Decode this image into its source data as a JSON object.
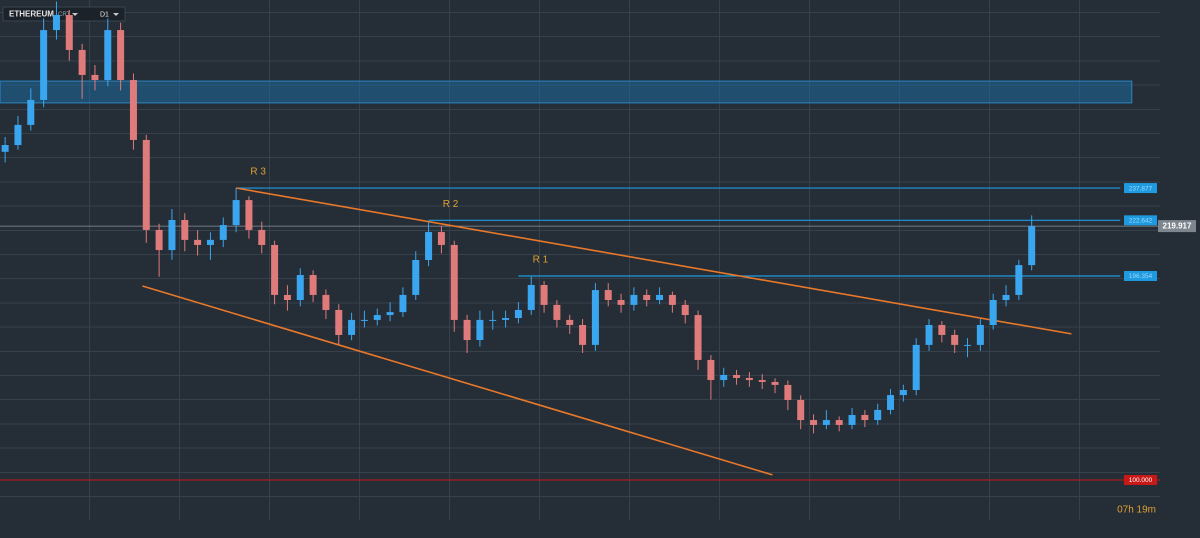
{
  "chart_data": {
    "type": "candlestick",
    "instrument": "ETHEREUM",
    "account": "CRT",
    "timeframe": "D1",
    "countdown": "07h 19m",
    "up_color": "#3aa6f0",
    "down_color": "#e07b7b",
    "xlim": [
      -0.4,
      90
    ],
    "ylim": [
      72.6,
      326.7
    ],
    "ohlc": [
      [
        255,
        262,
        250,
        258.2
      ],
      [
        258.2,
        272,
        256,
        267.7
      ],
      [
        267.7,
        285,
        265,
        279.5
      ],
      [
        279.5,
        318,
        276,
        312.5
      ],
      [
        312.5,
        326,
        308,
        319.6
      ],
      [
        319.6,
        322,
        298,
        303.1
      ],
      [
        303.1,
        306,
        280,
        291.3
      ],
      [
        291.3,
        296,
        284,
        288.9
      ],
      [
        288.9,
        318,
        286,
        312.5
      ],
      [
        312.5,
        316,
        284,
        288.9
      ],
      [
        288.9,
        292,
        256,
        260.6
      ],
      [
        260.6,
        263,
        212,
        218.1
      ],
      [
        218.1,
        221,
        196,
        208.6
      ],
      [
        208.6,
        228,
        204,
        222.8
      ],
      [
        222.8,
        226,
        208,
        213.4
      ],
      [
        213.4,
        218,
        206,
        211.0
      ],
      [
        211.0,
        217,
        204,
        213.4
      ],
      [
        213.4,
        224,
        210,
        220.4
      ],
      [
        220.4,
        237.9,
        217,
        232.2
      ],
      [
        232.2,
        234,
        214,
        218.1
      ],
      [
        218.1,
        222,
        207,
        211.0
      ],
      [
        211.0,
        213,
        183,
        187.4
      ],
      [
        187.4,
        192,
        180,
        185.0
      ],
      [
        185.0,
        200,
        182,
        196.8
      ],
      [
        196.8,
        199,
        184,
        187.4
      ],
      [
        187.4,
        190,
        176,
        180.3
      ],
      [
        180.3,
        183,
        164,
        168.5
      ],
      [
        168.5,
        179,
        166,
        175.6
      ],
      [
        175.6,
        180,
        172,
        175.6
      ],
      [
        175.6,
        181,
        173,
        177.9
      ],
      [
        177.9,
        184,
        175,
        179.3
      ],
      [
        179.3,
        191,
        177,
        187.4
      ],
      [
        187.4,
        208,
        185,
        203.9
      ],
      [
        203.9,
        222,
        201,
        217.1
      ],
      [
        217.1,
        220,
        207,
        211.0
      ],
      [
        211.0,
        213,
        170,
        175.6
      ],
      [
        175.6,
        178,
        160,
        166.1
      ],
      [
        166.1,
        180,
        163,
        175.6
      ],
      [
        175.6,
        180,
        171,
        175.6
      ],
      [
        175.6,
        180,
        172,
        176.5
      ],
      [
        176.5,
        184,
        174,
        180.3
      ],
      [
        180.3,
        196,
        178,
        192.1
      ],
      [
        192.1,
        194,
        179,
        182.7
      ],
      [
        182.7,
        185,
        172,
        175.6
      ],
      [
        175.6,
        178,
        169,
        173.2
      ],
      [
        173.2,
        176,
        160,
        163.8
      ],
      [
        163.8,
        193,
        161,
        189.7
      ],
      [
        189.7,
        193,
        182,
        185.0
      ],
      [
        185.0,
        188,
        179,
        182.7
      ],
      [
        182.7,
        191,
        180,
        187.4
      ],
      [
        187.4,
        190,
        182,
        185.0
      ],
      [
        185.0,
        191,
        183,
        187.4
      ],
      [
        187.4,
        189,
        179,
        182.7
      ],
      [
        182.7,
        185,
        174,
        177.9
      ],
      [
        177.9,
        180,
        152,
        156.7
      ],
      [
        156.7,
        159,
        138,
        147.2
      ],
      [
        147.2,
        153,
        144,
        149.6
      ],
      [
        149.6,
        152,
        145,
        148.2
      ],
      [
        148.2,
        151,
        144,
        147.2
      ],
      [
        147.2,
        150,
        143,
        146.3
      ],
      [
        146.3,
        148,
        141,
        144.9
      ],
      [
        144.9,
        147,
        133,
        137.8
      ],
      [
        137.8,
        140,
        124,
        128.3
      ],
      [
        128.3,
        131,
        122,
        126.0
      ],
      [
        126.0,
        133,
        124,
        128.3
      ],
      [
        128.3,
        130,
        123,
        126.0
      ],
      [
        126.0,
        134,
        124,
        130.7
      ],
      [
        130.7,
        133,
        125,
        128.3
      ],
      [
        128.3,
        136,
        126,
        133.1
      ],
      [
        133.1,
        143,
        131,
        140.1
      ],
      [
        140.1,
        145,
        137,
        142.5
      ],
      [
        142.5,
        167,
        140,
        163.8
      ],
      [
        163.8,
        176,
        161,
        173.2
      ],
      [
        173.2,
        175,
        165,
        168.5
      ],
      [
        168.5,
        171,
        160,
        163.8
      ],
      [
        163.8,
        167,
        158,
        163.8
      ],
      [
        163.8,
        176,
        161,
        173.2
      ],
      [
        173.2,
        188,
        171,
        185.0
      ],
      [
        185.0,
        192,
        182,
        187.4
      ],
      [
        187.4,
        204,
        185,
        201.5
      ],
      [
        201.5,
        225,
        199,
        219.917
      ]
    ],
    "current_price": 219.917,
    "zone": {
      "from": 278.1,
      "to": 288.4,
      "end": 87.8,
      "color": "#1e6a9e"
    },
    "levels": [
      {
        "label": "R 3",
        "value": 237.877,
        "start": 18
      },
      {
        "label": "R 2",
        "value": 222.642,
        "start": 33
      },
      {
        "label": "R 1",
        "value": 196.354,
        "start": 40
      }
    ],
    "level_end": 86.9,
    "level_color": "#1e9be0",
    "support_line": {
      "value": 100.0,
      "value_label": "100.000",
      "color": "#c81818"
    },
    "trendlines": [
      {
        "x": [
          18,
          83.1
        ],
        "y": [
          237.9,
          169.0
        ]
      },
      {
        "x": [
          10.7,
          59.8
        ],
        "y": [
          191.6,
          102.4
        ]
      }
    ],
    "trend_color": "#e8782a"
  }
}
